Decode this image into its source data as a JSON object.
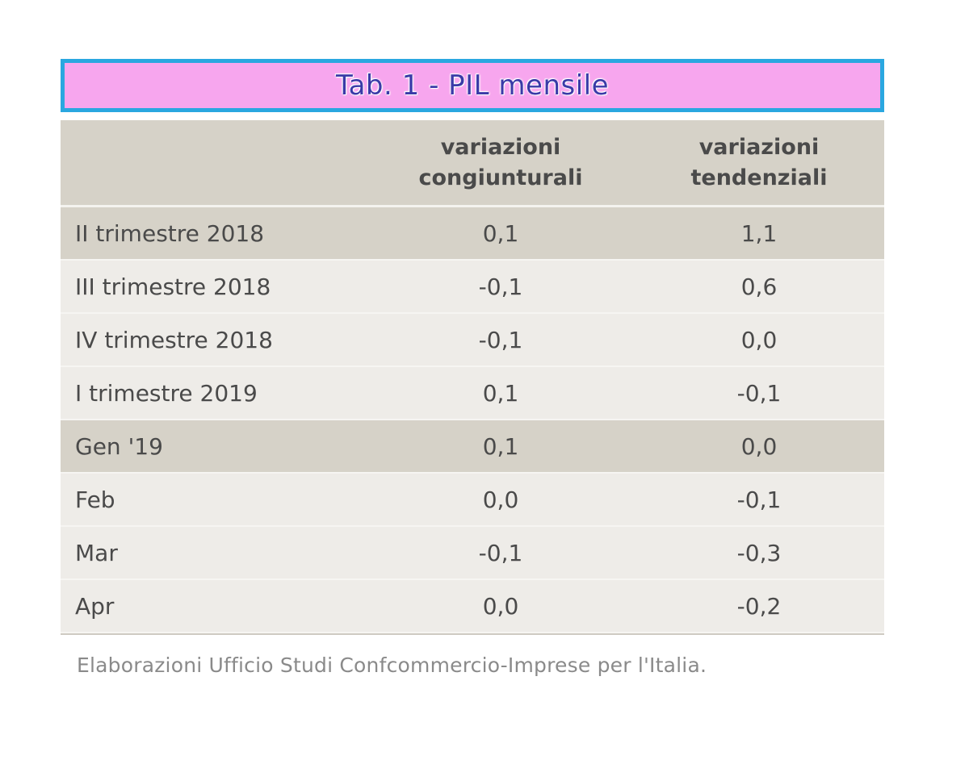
{
  "table": {
    "title": "Tab. 1 - PIL mensile",
    "columns": {
      "label": "",
      "a_line1": "variazioni",
      "a_line2": "congiunturali",
      "b_line1": "variazioni",
      "b_line2": "tendenziali"
    },
    "rows": [
      {
        "label": "II trimestre 2018",
        "congiunturali": "0,1",
        "tendenziali": "1,1"
      },
      {
        "label": "III trimestre 2018",
        "congiunturali": "-0,1",
        "tendenziali": "0,6"
      },
      {
        "label": "IV trimestre 2018",
        "congiunturali": "-0,1",
        "tendenziali": "0,0"
      },
      {
        "label": "I trimestre 2019",
        "congiunturali": "0,1",
        "tendenziali": "-0,1"
      },
      {
        "label": "Gen '19",
        "congiunturali": "0,1",
        "tendenziali": "0,0"
      },
      {
        "label": "Feb",
        "congiunturali": "0,0",
        "tendenziali": "-0,1"
      },
      {
        "label": "Mar",
        "congiunturali": "-0,1",
        "tendenziali": "-0,3"
      },
      {
        "label": "Apr",
        "congiunturali": "0,0",
        "tendenziali": "-0,2"
      }
    ],
    "source": "Elaborazioni Ufficio Studi Confcommercio-Imprese per l'Italia."
  },
  "colors": {
    "title_bg": "#f7a6ee",
    "title_border": "#2aa7e0",
    "row_dark": "#d6d2c8",
    "row_light": "#eeece8"
  }
}
